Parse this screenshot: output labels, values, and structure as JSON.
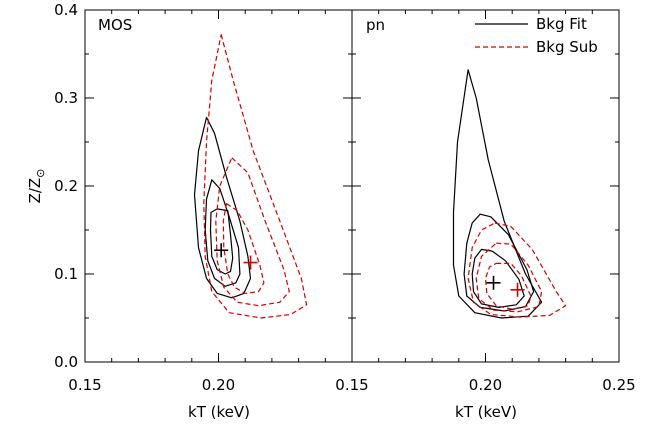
{
  "chart_data": [
    {
      "type": "contour",
      "panel_label": "MOS",
      "xlabel": "kT (keV)",
      "ylabel": "Z/Z",
      "ylabel_symbol": "⊙",
      "xlim": [
        0.15,
        0.25
      ],
      "ylim": [
        0.0,
        0.4
      ],
      "xticks": [
        0.15,
        0.2
      ],
      "xtick_labels": [
        "0.15",
        "0.20"
      ],
      "yticks": [
        0.0,
        0.1,
        0.2,
        0.3,
        0.4
      ],
      "ytick_labels": [
        "0.0",
        "0.1",
        "0.2",
        "0.3",
        "0.4"
      ],
      "series": [
        {
          "name": "Bkg Fit",
          "color": "#000000",
          "dash": "solid",
          "best_fit": [
            0.201,
            0.127
          ],
          "contours": [
            [
              [
                0.1995,
                0.174
              ],
              [
                0.2035,
                0.172
              ],
              [
                0.2045,
                0.145
              ],
              [
                0.2053,
                0.118
              ],
              [
                0.2045,
                0.103
              ],
              [
                0.2025,
                0.1
              ],
              [
                0.1995,
                0.105
              ],
              [
                0.1975,
                0.12
              ],
              [
                0.197,
                0.15
              ],
              [
                0.1972,
                0.17
              ]
            ],
            [
              [
                0.1975,
                0.207
              ],
              [
                0.2005,
                0.197
              ],
              [
                0.204,
                0.165
              ],
              [
                0.2075,
                0.13
              ],
              [
                0.208,
                0.1
              ],
              [
                0.2065,
                0.09
              ],
              [
                0.2025,
                0.086
              ],
              [
                0.1985,
                0.095
              ],
              [
                0.196,
                0.115
              ],
              [
                0.195,
                0.15
              ],
              [
                0.1955,
                0.185
              ]
            ],
            [
              [
                0.1955,
                0.278
              ],
              [
                0.1985,
                0.26
              ],
              [
                0.203,
                0.21
              ],
              [
                0.208,
                0.16
              ],
              [
                0.211,
                0.12
              ],
              [
                0.212,
                0.095
              ],
              [
                0.2095,
                0.078
              ],
              [
                0.205,
                0.073
              ],
              [
                0.1995,
                0.078
              ],
              [
                0.1955,
                0.095
              ],
              [
                0.1925,
                0.13
              ],
              [
                0.191,
                0.19
              ],
              [
                0.1925,
                0.24
              ]
            ]
          ]
        },
        {
          "name": "Bkg Sub",
          "color": "#d40000",
          "dash": "dashed",
          "best_fit": [
            0.212,
            0.113
          ],
          "contours": [
            [
              [
                0.203,
                0.18
              ],
              [
                0.207,
                0.172
              ],
              [
                0.211,
                0.15
              ],
              [
                0.2155,
                0.11
              ],
              [
                0.217,
                0.09
              ],
              [
                0.215,
                0.08
              ],
              [
                0.21,
                0.078
              ],
              [
                0.206,
                0.085
              ],
              [
                0.2035,
                0.1
              ],
              [
                0.202,
                0.13
              ],
              [
                0.2018,
                0.16
              ]
            ],
            [
              [
                0.205,
                0.232
              ],
              [
                0.211,
                0.215
              ],
              [
                0.2175,
                0.16
              ],
              [
                0.2245,
                0.105
              ],
              [
                0.2265,
                0.08
              ],
              [
                0.223,
                0.068
              ],
              [
                0.215,
                0.064
              ],
              [
                0.207,
                0.068
              ],
              [
                0.202,
                0.085
              ],
              [
                0.1995,
                0.115
              ],
              [
                0.199,
                0.16
              ],
              [
                0.2005,
                0.2
              ]
            ],
            [
              [
                0.201,
                0.372
              ],
              [
                0.2055,
                0.32
              ],
              [
                0.213,
                0.24
              ],
              [
                0.223,
                0.16
              ],
              [
                0.231,
                0.095
              ],
              [
                0.233,
                0.065
              ],
              [
                0.227,
                0.054
              ],
              [
                0.216,
                0.05
              ],
              [
                0.204,
                0.056
              ],
              [
                0.1975,
                0.08
              ],
              [
                0.195,
                0.12
              ],
              [
                0.1945,
                0.18
              ],
              [
                0.1955,
                0.25
              ],
              [
                0.1975,
                0.32
              ]
            ]
          ]
        }
      ]
    },
    {
      "type": "contour",
      "panel_label": "pn",
      "xlabel": "kT (keV)",
      "xlim": [
        0.15,
        0.25
      ],
      "ylim": [
        0.0,
        0.4
      ],
      "xticks": [
        0.15,
        0.2,
        0.25
      ],
      "xtick_labels": [
        "0.15",
        "0.20",
        "0.25"
      ],
      "legend": {
        "placement": "top-right",
        "entries": [
          {
            "label": "Bkg Fit",
            "color": "#000000",
            "dash": "solid"
          },
          {
            "label": "Bkg Sub",
            "color": "#d40000",
            "dash": "dashed"
          }
        ]
      },
      "series": [
        {
          "name": "Bkg Fit",
          "color": "#000000",
          "dash": "solid",
          "best_fit": [
            0.203,
            0.09
          ],
          "contours": [
            [
              [
                0.1985,
                0.128
              ],
              [
                0.2025,
                0.126
              ],
              [
                0.2075,
                0.115
              ],
              [
                0.2125,
                0.094
              ],
              [
                0.2145,
                0.075
              ],
              [
                0.2115,
                0.065
              ],
              [
                0.205,
                0.062
              ],
              [
                0.1985,
                0.066
              ],
              [
                0.1955,
                0.08
              ],
              [
                0.195,
                0.1
              ],
              [
                0.196,
                0.118
              ]
            ],
            [
              [
                0.198,
                0.168
              ],
              [
                0.202,
                0.165
              ],
              [
                0.2085,
                0.145
              ],
              [
                0.2155,
                0.105
              ],
              [
                0.218,
                0.08
              ],
              [
                0.215,
                0.063
              ],
              [
                0.207,
                0.058
              ],
              [
                0.198,
                0.062
              ],
              [
                0.193,
                0.075
              ],
              [
                0.192,
                0.1
              ],
              [
                0.193,
                0.135
              ],
              [
                0.195,
                0.158
              ]
            ],
            [
              [
                0.1935,
                0.332
              ],
              [
                0.1965,
                0.3
              ],
              [
                0.201,
                0.23
              ],
              [
                0.207,
                0.16
              ],
              [
                0.215,
                0.1
              ],
              [
                0.221,
                0.068
              ],
              [
                0.216,
                0.052
              ],
              [
                0.206,
                0.05
              ],
              [
                0.196,
                0.056
              ],
              [
                0.19,
                0.075
              ],
              [
                0.188,
                0.11
              ],
              [
                0.188,
                0.17
              ],
              [
                0.1895,
                0.25
              ]
            ]
          ]
        },
        {
          "name": "Bkg Sub",
          "color": "#d40000",
          "dash": "dashed",
          "best_fit": [
            0.212,
            0.082
          ],
          "contours": [
            [
              [
                0.204,
                0.112
              ],
              [
                0.2095,
                0.112
              ],
              [
                0.2135,
                0.098
              ],
              [
                0.217,
                0.075
              ],
              [
                0.216,
                0.064
              ],
              [
                0.21,
                0.06
              ],
              [
                0.204,
                0.064
              ],
              [
                0.2005,
                0.078
              ],
              [
                0.2,
                0.095
              ],
              [
                0.2015,
                0.108
              ]
            ],
            [
              [
                0.204,
                0.135
              ],
              [
                0.2095,
                0.134
              ],
              [
                0.216,
                0.11
              ],
              [
                0.221,
                0.08
              ],
              [
                0.22,
                0.063
              ],
              [
                0.212,
                0.057
              ],
              [
                0.203,
                0.059
              ],
              [
                0.1975,
                0.072
              ],
              [
                0.1965,
                0.095
              ],
              [
                0.1985,
                0.12
              ]
            ],
            [
              [
                0.2035,
                0.158
              ],
              [
                0.2095,
                0.154
              ],
              [
                0.2175,
                0.128
              ],
              [
                0.2265,
                0.08
              ],
              [
                0.23,
                0.064
              ],
              [
                0.224,
                0.053
              ],
              [
                0.213,
                0.051
              ],
              [
                0.202,
                0.054
              ],
              [
                0.1955,
                0.068
              ],
              [
                0.1935,
                0.095
              ],
              [
                0.195,
                0.13
              ],
              [
                0.1985,
                0.15
              ]
            ]
          ]
        }
      ]
    }
  ]
}
